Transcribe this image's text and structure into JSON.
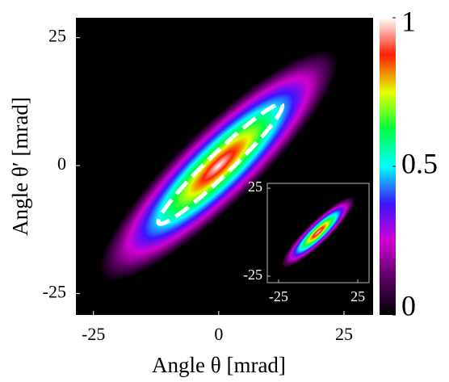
{
  "chart_data": [
    {
      "type": "heatmap",
      "x_label": "Angle θ [mrad]",
      "y_label": "Angle θ′ [mrad]",
      "xlim": [
        -28.5,
        30.8
      ],
      "ylim": [
        -29.2,
        28.9
      ],
      "xticks": [
        -25,
        0,
        25
      ],
      "yticks": [
        -25,
        0,
        25
      ],
      "colorbar_lim": [
        0,
        1
      ],
      "colorbar_ticks": [
        0,
        0.5,
        1
      ],
      "colormap": [
        "#000000",
        "#5a0064",
        "#d200d2",
        "#3c14ff",
        "#00ffff",
        "#00ff40",
        "#e6ff00",
        "#ff1e00",
        "#ffffff"
      ]
    },
    {
      "type": "heatmap",
      "xlim": [
        -32.1,
        32.1
      ],
      "ylim": [
        -28.7,
        27.8
      ],
      "xticks": [
        -25,
        25
      ],
      "yticks": [
        -25,
        25
      ]
    }
  ]
}
